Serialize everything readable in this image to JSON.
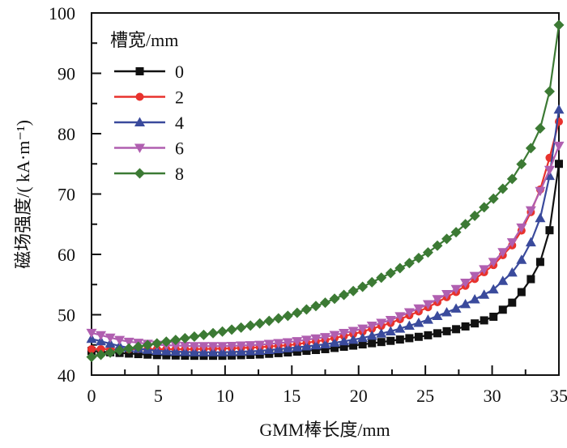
{
  "chart_data": {
    "type": "line",
    "title": "",
    "xlabel": "GMM棒长度/mm",
    "ylabel": "磁场强度/( kA·m⁻¹)",
    "xlim": [
      0,
      35
    ],
    "ylim": [
      40,
      100
    ],
    "xticks": [
      0,
      5,
      10,
      15,
      20,
      25,
      30,
      35
    ],
    "yticks": [
      40,
      50,
      60,
      70,
      80,
      90,
      100
    ],
    "xtick_labels": [
      "0",
      "5",
      "10",
      "15",
      "20",
      "25",
      "30",
      "35"
    ],
    "ytick_labels": [
      "40",
      "50",
      "60",
      "70",
      "80",
      "90",
      "100"
    ],
    "grid": false,
    "legend": {
      "title": "槽宽/mm",
      "placement": "top-left"
    },
    "series": [
      {
        "name": "0",
        "color": "#111111",
        "marker": "square",
        "x": [
          0,
          2.5,
          5,
          7.5,
          10,
          12.5,
          15,
          17.5,
          20,
          22.5,
          25,
          27.5,
          30,
          31.5,
          32.5,
          33.5,
          34.3,
          35
        ],
        "y": [
          44.0,
          43.6,
          43.3,
          43.2,
          43.2,
          43.4,
          43.8,
          44.3,
          45.0,
          45.7,
          46.5,
          47.7,
          49.5,
          52.0,
          54.5,
          58.0,
          64.0,
          75.0
        ]
      },
      {
        "name": "2",
        "color": "#e8322d",
        "marker": "circle",
        "x": [
          0,
          2.5,
          5,
          7.5,
          10,
          12.5,
          15,
          17.5,
          20,
          22.5,
          25,
          27.5,
          30,
          31.5,
          32.5,
          33.5,
          34.3,
          35
        ],
        "y": [
          44.3,
          44.3,
          44.3,
          44.3,
          44.4,
          44.6,
          45.0,
          45.8,
          47.0,
          48.7,
          51.0,
          54.0,
          58.0,
          61.5,
          65.0,
          70.0,
          76.0,
          82.0
        ]
      },
      {
        "name": "4",
        "color": "#3a4a9c",
        "marker": "triangle-up",
        "x": [
          0,
          2.5,
          5,
          7.5,
          10,
          12.5,
          15,
          17.5,
          20,
          22.5,
          25,
          27.5,
          30,
          31.5,
          32.5,
          33.5,
          34.3,
          35
        ],
        "y": [
          46.0,
          44.6,
          44.0,
          43.8,
          43.8,
          44.0,
          44.5,
          45.1,
          46.0,
          47.3,
          49.0,
          51.2,
          54.0,
          57.0,
          60.0,
          65.0,
          73.0,
          84.0
        ]
      },
      {
        "name": "6",
        "color": "#b05fb0",
        "marker": "triangle-down",
        "x": [
          0,
          2.5,
          5,
          7.5,
          10,
          12.5,
          15,
          17.5,
          20,
          22.5,
          25,
          27.5,
          30,
          31.5,
          32.5,
          33.5,
          34.3,
          35
        ],
        "y": [
          47.0,
          45.6,
          45.0,
          44.8,
          44.8,
          45.0,
          45.5,
          46.3,
          47.5,
          49.2,
          51.5,
          54.5,
          58.5,
          62.0,
          65.5,
          70.0,
          74.0,
          78.0
        ]
      },
      {
        "name": "8",
        "color": "#3c7a34",
        "marker": "diamond",
        "x": [
          0,
          2.5,
          5,
          7.5,
          10,
          12.5,
          15,
          17.5,
          20,
          22.5,
          25,
          27.5,
          30,
          31.5,
          32.5,
          33.5,
          34.3,
          35
        ],
        "y": [
          43.0,
          44.3,
          45.3,
          46.3,
          47.3,
          48.5,
          50.0,
          52.0,
          54.3,
          57.0,
          60.0,
          64.0,
          69.0,
          72.5,
          76.0,
          80.0,
          87.0,
          98.0
        ]
      }
    ]
  }
}
